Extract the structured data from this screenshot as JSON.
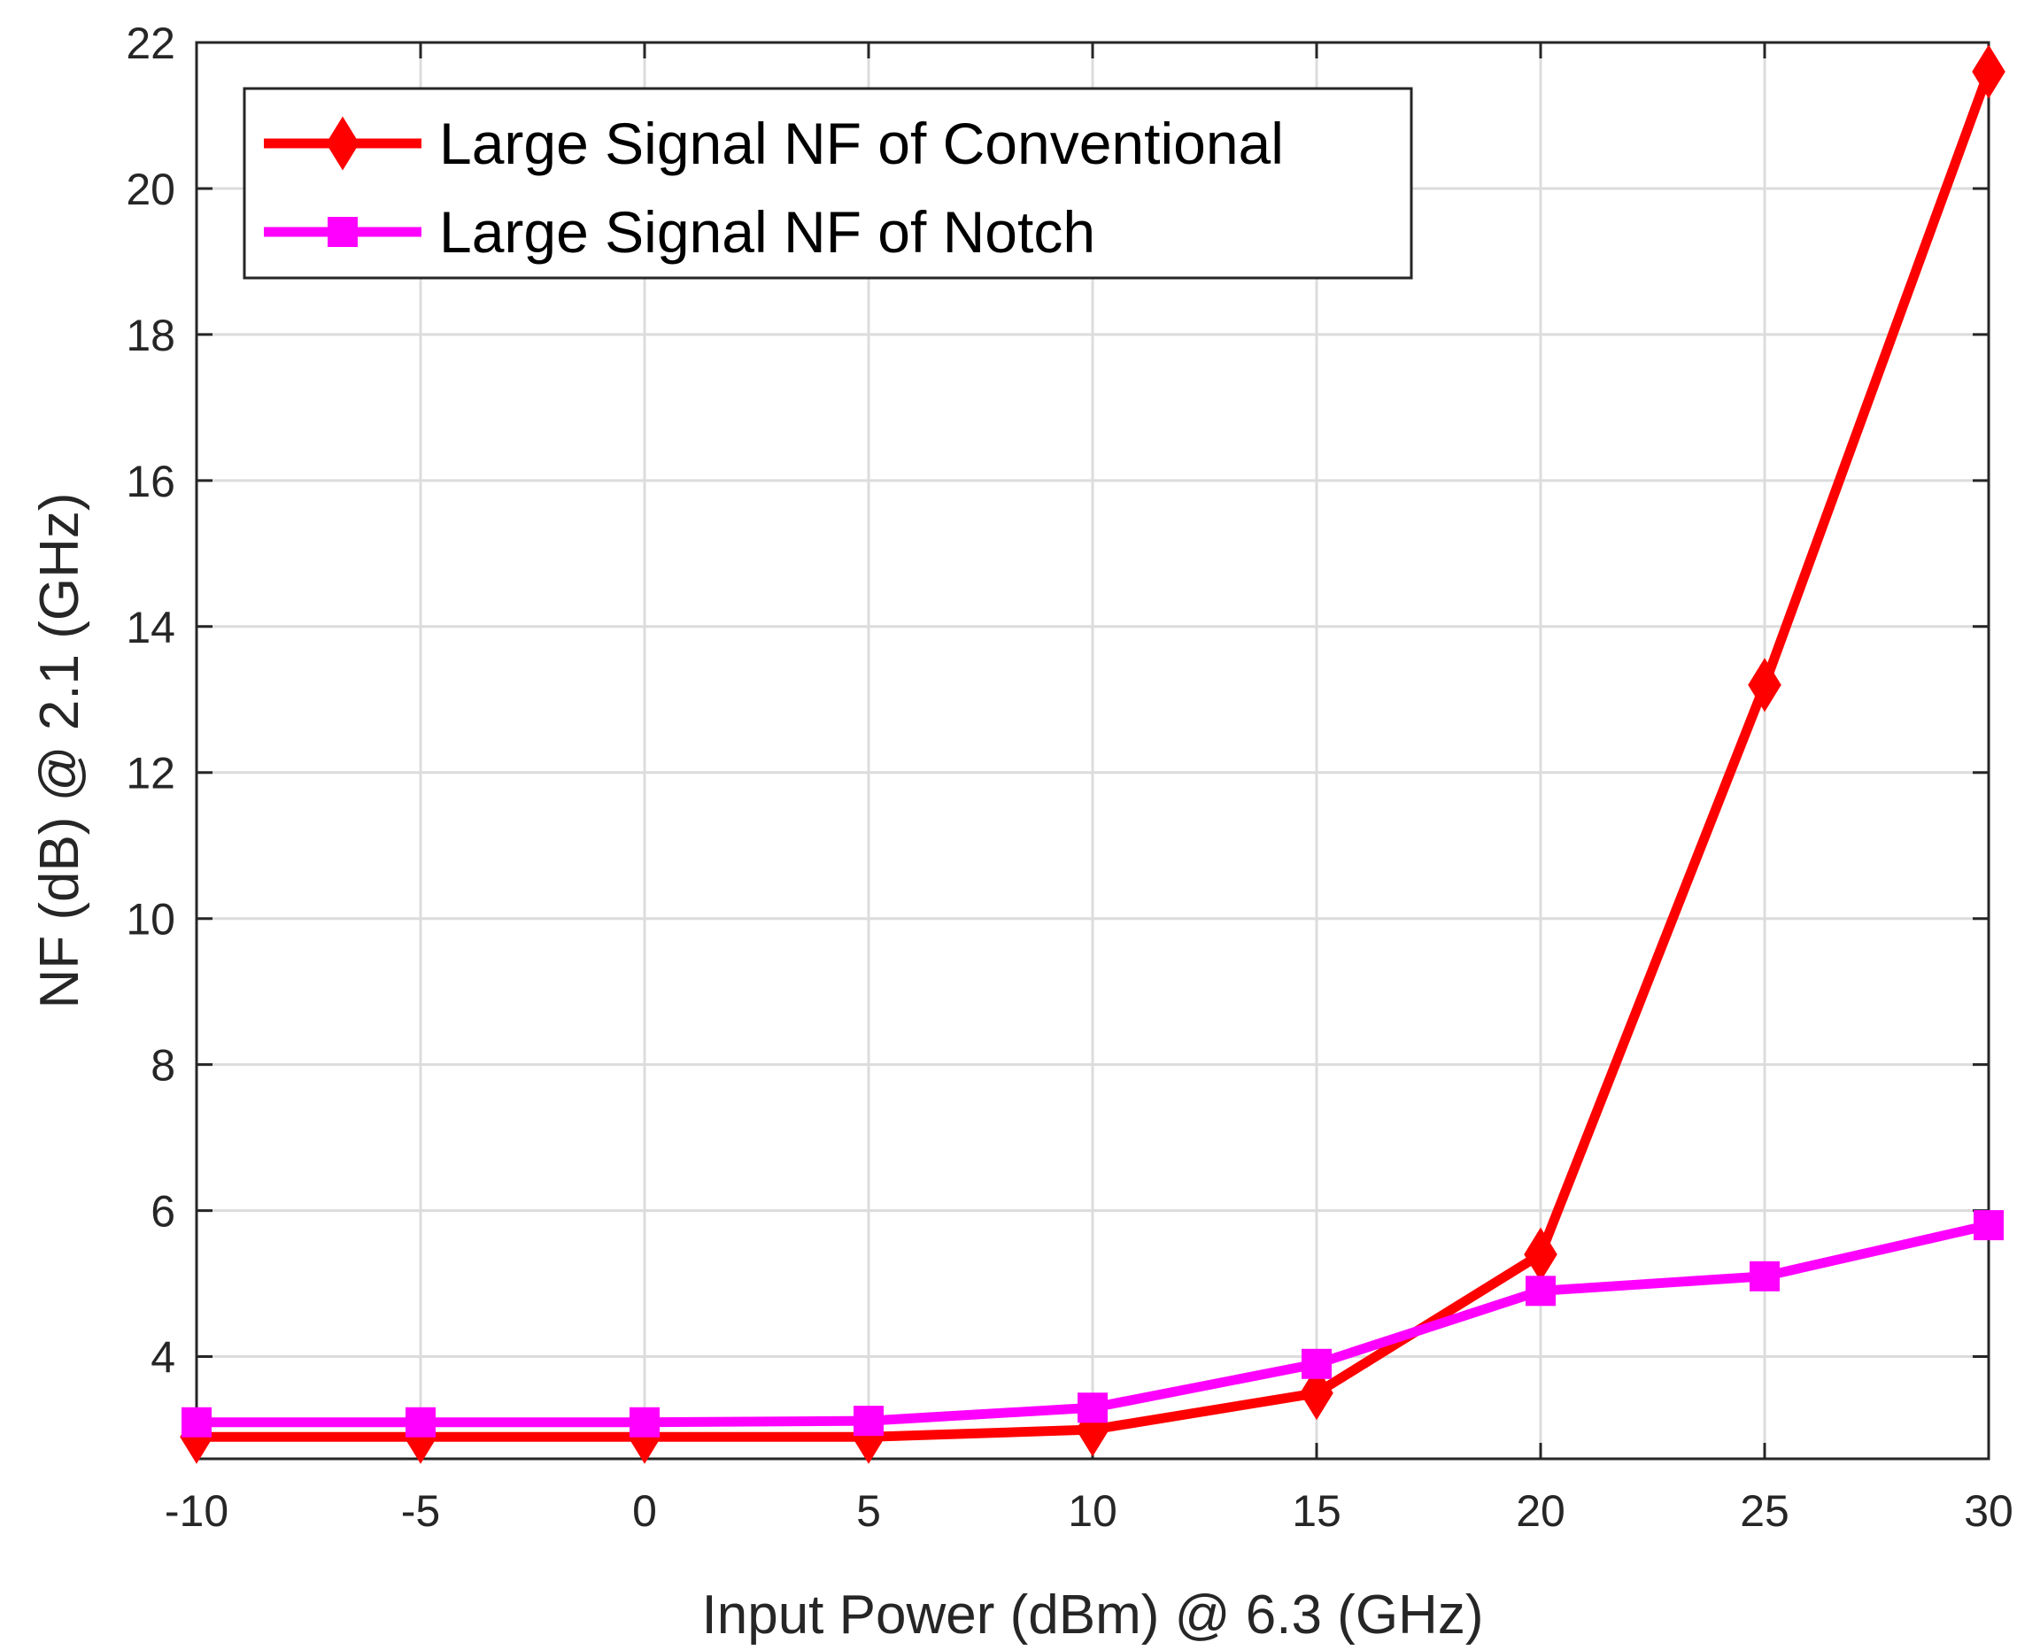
{
  "chart_data": {
    "type": "line",
    "title": "",
    "xlabel": "Input Power (dBm) @ 6.3 (GHz)",
    "ylabel": "NF (dB) @ 2.1 (GHz)",
    "xlim": [
      -10,
      30
    ],
    "ylim": [
      2.6,
      22
    ],
    "grid": true,
    "legend_position": "top-left",
    "x": [
      -10,
      -5,
      0,
      5,
      10,
      15,
      20,
      25,
      30
    ],
    "xticks": [
      -10,
      -5,
      0,
      5,
      10,
      15,
      20,
      25,
      30
    ],
    "yticks": [
      4,
      6,
      8,
      10,
      12,
      14,
      16,
      18,
      20,
      22
    ],
    "series": [
      {
        "name": "Large Signal NF of Conventional",
        "color": "#ff0000",
        "marker": "diamond",
        "values": [
          2.9,
          2.9,
          2.9,
          2.9,
          3.0,
          3.5,
          5.4,
          13.2,
          21.6
        ]
      },
      {
        "name": "Large Signal NF of Notch",
        "color": "#ff00ff",
        "marker": "square",
        "values": [
          3.1,
          3.1,
          3.1,
          3.12,
          3.3,
          3.9,
          4.9,
          5.1,
          5.8
        ]
      }
    ]
  }
}
